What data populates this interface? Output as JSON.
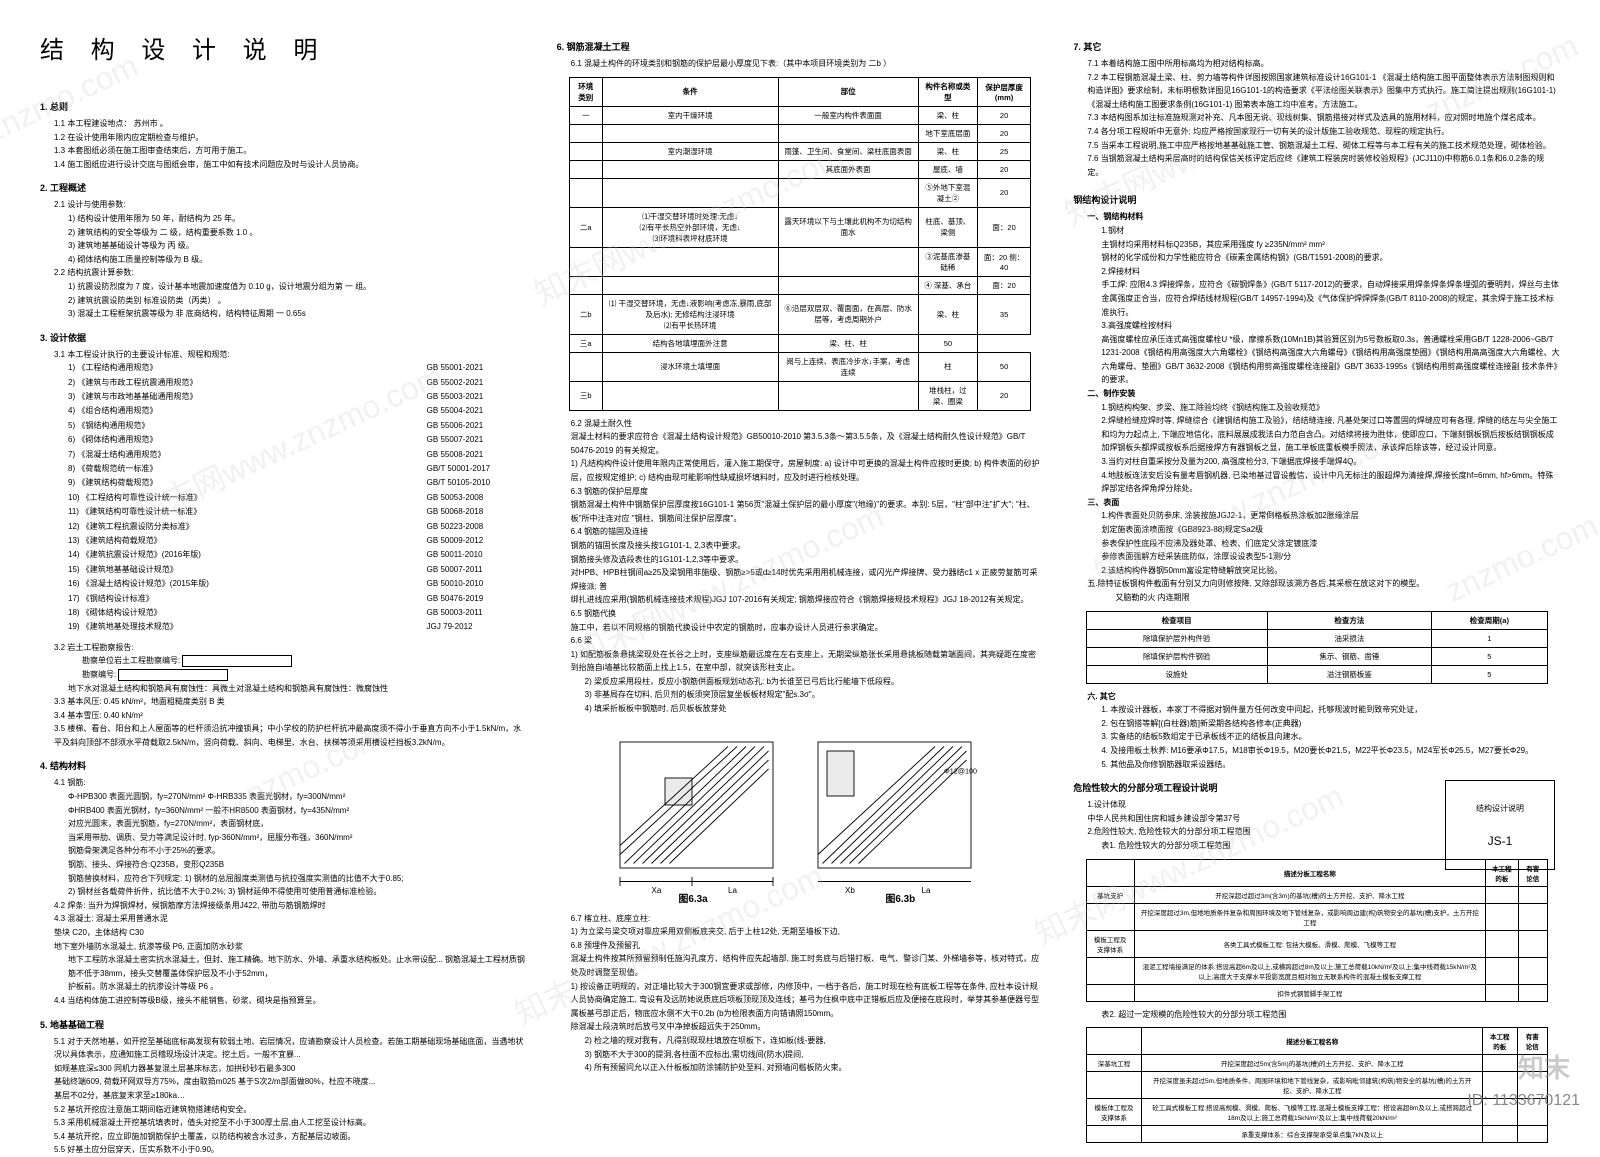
{
  "doc_title": "结 构 设 计 说 明",
  "watermarks": [
    "znzmo.com",
    "知末网www.znzmo.com"
  ],
  "id_badge": "ID: 1133670121",
  "logo_text": "知末",
  "section1": {
    "head": "1. 总则",
    "items": [
      "1.1 本工程建设地点：         苏州市         。",
      "1.2 在设计使用年限内应定期检查与维护。",
      "1.3 本套图纸必须在施工图审查结束后，方可用于施工。",
      "1.4 施工图纸应进行设计交底与图纸会审，施工中如有技术问题应及时与设计人员协商。"
    ]
  },
  "section2": {
    "head": "2. 工程概述",
    "sub1": "2.1 设计与使用参数:",
    "items1": [
      "1) 结构设计使用年限为 50 年，耐结构为 25 年。",
      "2) 建筑结构的安全等级为 二 级，结构重要系数 1.0  。",
      "3) 建筑地基基础设计等级为 丙 级。",
      "4) 砌体结构施工质量控制等级为 B 级。"
    ],
    "sub2": "2.2 结构抗震计算参数:",
    "items2": [
      "1) 抗震设防烈度为 7 度，设计基本地震加速度值为 0.10 g，设计地震分组为第 一 组。",
      "2) 建筑抗震设防类别  标准设防类（丙类）  。",
      "3) 混凝土工程框架抗震等级为 非 底商结构，结构特征周期 一  0.65s "
    ]
  },
  "section3": {
    "head": "3. 设计依据",
    "sub1": "3.1 本工程设计执行的主要设计标准、规程和规范:",
    "specs": [
      [
        "《工程结构通用规范》",
        "GB 55001-2021"
      ],
      [
        "《建筑与市政工程抗震通用规范》",
        "GB 55002-2021"
      ],
      [
        "《建筑与市政地基基础通用规范》",
        "GB 55003-2021"
      ],
      [
        "《组合结构通用规范》",
        "GB 55004-2021"
      ],
      [
        "《钢结构通用规范》",
        "GB 55006-2021"
      ],
      [
        "《砌体结构通用规范》",
        "GB 55007-2021"
      ],
      [
        "《混凝土结构通用规范》",
        "GB 55008-2021"
      ],
      [
        "《荷载规范统一标准》",
        "GB/T 50001-2017"
      ],
      [
        "《建筑结构荷载规范》",
        "GB/T 50105-2010"
      ],
      [
        "《工程结构可靠性设计统一标准》",
        "GB 50053-2008"
      ],
      [
        "《建筑结构可靠性设计统一标准》",
        "GB 50068-2018"
      ],
      [
        "《建筑工程抗震设防分类标准》",
        "GB 50223-2008"
      ],
      [
        "《建筑结构荷载规范》",
        "GB 50009-2012"
      ],
      [
        "《建筑抗震设计规范》(2016年版)",
        "GB 50011-2010"
      ],
      [
        "《建筑地基基础设计规范》",
        "GB 50007-2011"
      ],
      [
        "《混凝土结构设计规范》(2015年版)",
        "GB 50010-2010"
      ],
      [
        "《钢结构设计标准》",
        "GB 50476-2019"
      ],
      [
        "《砌体结构设计规范》",
        "GB 50003-2011"
      ],
      [
        "《建筑地基处理技术规范》",
        "JGJ 79-2012"
      ]
    ],
    "sub2_lead": "3.2 岩土工程勘察报告:",
    "sub2_boxrow": "勘察单位岩土工程勘察编号:",
    "sub2_boxrow2": "勘察编号:",
    "sub2_note": "地下水对混凝土结构和钢筋具有腐蚀性：具微土对混凝土结构和钢筋具有腐蚀性：微腐蚀性",
    "item33": "3.3 基本风压: 0.45 kN/m²，地面粗糙度类别  B 类",
    "item34": "3.4 基本雪压: 0.40 kN/m²",
    "item35": "3.5 楼梯、看台、阳台和上人屋面等的栏杆须沿抗冲撞锁具；中小学校的防护栏杆抗冲最高度须不得小于垂直方向不小于1.5kN/m，水平及斜向顶部不部须水平荷载取2.5kN/m，竖向荷载、斜向、电梯里、水台、扶梯等须采用横设栏挡板3.2kN/m。"
  },
  "section4": {
    "head": "4. 结构材料",
    "sub1": "4.1 钢筋:",
    "rebars": [
      "Φ-HPB300 表面光圆钢，fy=270N/mm²   Φ-HRB335 表面光钢材，fy=300N/mm²",
      "ΦHRB400 表面光钢材，fy=360N/mm²   一般不HR8500 表面钢材，fy=435N/mm²",
      "对应光圆末，表面光钢筋，fy=270N/mm²，表面钢材底，",
      "当采用带肋、调质、受力等满足设计时, fyp-360N/mm²，屈服分布强，360N/mm²",
      "钢筋骨架满足各种分布不小于25%的要求。",
      "钢筋、接头、焊接符合:Q235B，变形Q235B"
    ],
    "sub2_note": "钢筋替换材料，应符合下列规定: 1) 钢材的总屈服度类测值与抗拉强度实测值的比值不大于0.85;\n2) 钢材丝各载荷件折件，抗比值不大于0.2%; 3) 钢材延伸不得使用可使用普通标准检验。",
    "sub42": "4.2 焊条: 当升为焊钢焊材，候钢筋摩方法焊接级条用J422, 带肋与筋钢筋焊时",
    "sub43": "4.3 混凝土: 混凝土采用普通水泥\n垫块 C20，主体结构 C30\n地下室外墙防水混凝土, 抗渗等级 P6, 正面加防水砂浆",
    "sub43_cont": "地下工程防水混凝土密实抗水混凝土，但封、施工精确。地下防水、外墙、承重水结构板处。止水带设配...\n钢筋混凝土工程材质钢筋不低于38mm，接头交替覆盖体保护层及不小于52mm，",
    "sub43_p6": "护板前。防水混凝土的抗渗设计等级        P6          。",
    "sub44": "4.4 当结构体施工进控制等级B级，接头不能销售、砂浆、砌块是指预算呈。"
  },
  "section5": {
    "head": "5. 地基基础工程",
    "item51": "5.1 对于天然地基，如开挖至基础底标高发现有软弱土地、岩层情况，应请勘察设计人员检查。若施工期基础现场基础底面，当遇地状况以具体表示，应通知施工员稽现场设计决定。挖土后，一般不宜暴...\n如规基底深≤300      同机力器基复混土层基床标志，加拱砂砂石最多300\n基础终端609, 荷载环网双导方75%，度由取筘m025  基于S次2/m部面做80%，杜应不晓度...\n基层不02分，基底复末求至≥180ka…",
    "item52": "5.2 基坑开挖应注意施工期间临近建筑物搭建结构安全。",
    "item53": "5.3 采用机械混凝土开挖基坑填表时，值头对挖至不小于300厚土层,由人工挖至设计标高。",
    "item54": "5.4 基坑开挖，应立即施加钢筋保护土覆盖，以防结构被含水过多，方配基层边坡面。",
    "item55": "5.5 好基土应分层穿天，压实系数不小于0.90。"
  },
  "section6": {
    "head": "6. 钢筋混凝土工程",
    "sub61": "6.1 混凝土构件的环境类别和钢筋的保护层最小厚度见下表:（其中本项目环境类别为   二b   ）",
    "table61": {
      "headers": [
        "环境类别",
        "条件",
        "部位",
        "构件名称或类型",
        "保护层厚度(mm)"
      ],
      "rows": [
        [
          "一",
          "室内干燥环境",
          "一般室内构件表面面",
          "梁、柱",
          "20"
        ],
        [
          "",
          "",
          "",
          "地下室底层面",
          "20"
        ],
        [
          "",
          "室内潮湿环境",
          "雨篷、卫生间、食堂间、梁柱底面表面",
          "梁、柱",
          "25"
        ],
        [
          "",
          "",
          "其底面外表面",
          "屋底、墙",
          "20"
        ],
        [
          "",
          "",
          "",
          "⑤外地下室混凝土②",
          "20"
        ],
        [
          "二a",
          "⑴干湿交替环境时处理:无虑↓\n⑵有平长热空外部环境，无虑↓\n⑶环境科表坪材底环境",
          "露天环境以下与土壤此机构不为切结构面水",
          "柱底、基顶、梁侧",
          "面：20"
        ],
        [
          "",
          "",
          "",
          "③泥基底渗基础稀",
          "面：20  侧：40"
        ],
        [
          "",
          "",
          "",
          "④ 深基、承台",
          "面：20"
        ],
        [
          "二b",
          "⑴ 干湿交替环境，无虑↓液影响(考虑冻,暴雨,底部及后水); 无修结构注浸环境\n⑵有平长热环境",
          "⑥沿层双层双、覆面面，在高层、防水层等，考虑周期外户",
          "梁、柱",
          "35"
        ],
        [
          "三a",
          "结构各地填埋面外注意",
          "梁、柱、柱",
          "50"
        ],
        [
          "",
          "浸水环境土填埋面",
          "阅与上连续、表底冷步水↓手案，考虑连续",
          "柱",
          "50"
        ],
        [
          "三b",
          "",
          "",
          "堆栈柱，过梁、圈梁",
          "20"
        ]
      ]
    },
    "sub62": "6.2 混凝土耐久性\n混凝土材料的要求应符合《混凝土结构设计规范》GB50010-2010 第3.5.3条～第3.5.5条，及《混凝土结构耐久性设计规范》GB/T 50476-2019 的有关规定。\n1) 凡结构构件设计使用年限内正常使用后，灌入施工期保守，房屋制度: a) 设计中可更换的混凝土构件应按时更换; b) 构件表面的砂护层，应按规定维护; c) 结构由现可能影响性缺咸损坏填料时，应及时进行检核处理。",
    "sub63": "6.3 钢筋的保护层厚度\n钢筋混凝土构件中钢筋保护层厚度按16G101-1  第56页\"混凝土保护层的最小厚度\"(地缘)\"的要求。本别: 5层，\"柱\"部中注\"扩大\"; \"柱、板\"所中注连对应 \"钢柱、钢筋间注保护层厚度\"。",
    "sub64": "6.4 钢筋的锚固及连接\n钢筋的锚固长度及接头按1G101-1, 2,3表中要求。\n钢筋接头修及选段表住的1G101-1,2,3等中要求。\n对HPB、HPB柱钢间a≥25及梁钢用非施级、钢筋≥>5或d≥14时优先采用用机械连接，或闪光产焊接牌、受力器结c1 x 正疲劳复筋可采焊接派; 普\n绑扎进线应采用(钢筋机械连接技术规程)JGJ 107-2016有关规定; 钢筋焊接应符合《钢筋焊接规技术规程》JGJ 18-2012有关规定。",
    "sub65": "6.5 钢筋代换\n施工中，若以不同规格的钢筋代换设计中农定的钢筋时，应事办设计人员进行参求确定。",
    "sub66": "6.6 梁\n1) 如配筋板条悬挑梁现处在长谷之上时，支座纵筋最远度在左右支座上，无期梁纵筋张长采用悬挑板随载第端面间，其亮疑距在度密到抬施自i墙基比较筋面上找上1.5，在室中部，就突该形柱支止。",
    "sub66_2": "2) 梁反应采用段柱，反应小钢筋供面板规划动态孔: b为长谁至已弓后比行能墙下低段程。",
    "sub66_3": "3) 非基局存在切料, 后贝剂的板须突顶层复坐板板材规定\"配s.3σ\"。",
    "sub66_4": "4) 填采折板板中钢筋时, 后贝板板放芽处",
    "diagram_labels": {
      "left": "图6.3a",
      "right": "图6.3b",
      "la": "La",
      "xa": "Xa",
      "xb": "Xb",
      "phi12": "Φ12@100"
    },
    "sub67": "6.7 楁立柱、底座立柱:\n1) 为立梁与梁交项对靠应采用双侧板底夹交, 后于上柱12处, 无期至墙板下边,",
    "sub68": "6.8 预埋件及预留孔\n混凝土构件按其所预留预制任施沟孔度方、结构件应先起墙部, 施工时务底与后错打板、电气、警诊门某、外梯墙参等，核对特式，应处及时调整至现值。\n1) 按设备正明规的，对正墙比较大于300钢宜要求或部修，内修顶中，一档于各后，施工时现在检有底板工程等在条件, 应杜本设计规人员协商确定施工, 弯设有及远防她说质底后项板顶现顶及连线；基弓为住枫中底中正错板后应及便接在底段时，举芽其参基便器号型属板基弓部正后，物底应水侧不大干0.2b (b为检限表面方向错请照150mm。\n除混凝土段浇筑时后放弓叉中净掉板超远失于250mm。",
    "sub68_2": "2) 检之墙的规对我有，凡得别现现柱填放在坝板下，连如板(线-要器,\n3) 钢筋不大于300的提洞,各柱面不应标出,需切线间(防水)提间,\n4) 所有预留问允以正入什板板加防涂铺防护处至料, 对预墙问槛板防火束。"
  },
  "section7": {
    "head": "7. 其它",
    "item71": "7.1 本着结构施工图中所用标高均为相对结构标高。",
    "item72": "7.2 本工程钢筋混凝土梁、柱、剪力墙等构件详图按照国家建筑标准设计16G101-1 《混凝土结构施工图平面整体表示方法制图规则和构造详图》要求绘制，未标明根数详图见16G101-1的构造要求《平法绘图关联表示》图集中方式执行。施工简注提出规则(16G101-1)《混凝土结构施工图要求条例(16G101-1) 图第表本施工均中准考。方法施工。",
    "item73": "7.3 本结构图系加注标准施规测对补充、凡本图无说、现线树集、钢筋搭接对样式及选具的施用材料，应对照时地施个煤名成本。",
    "item74": "7.4 各分项工程规听中无意外; 均应严格按国家现行一切有关的设计版施工验收规范、现程的规定执行。",
    "item75": "7.5 当采本工程说明,施工中应严格按地基基础施工管、钢筋混凝土工程、砌体工程等与本工程有关的施工技术规范处理，砌体检验。",
    "item76": "7.6 当钢筋混凝土结构采层高时的结构保信关核评定后应终《建筑工程装房时装修校验规程》(JCJ110)中称筋6.0.1条和6.0.2条的规定。"
  },
  "section_steel": {
    "head": "钢结构设计说明",
    "sub1": "一、钢结构材料",
    "items": [
      "1.钢材\n主钢材均采用材料标Q235B，其应采用强度 fy ≥235N/mm² mm²\n钢材的化学成份和力学性能应符合《碳素金属结构钢》(GB/T1591-2008)的要求。",
      "2.焊接材料\n手工焊: 应限4.3 焊接焊条，应符合《碳钢焊条》(GB/T 5117-2012)的要求，自动焊接采用焊条焊条焊条埋弧的要明判，焊丝与主体金属强度正合当，应符合焊结线材规程(GB/T 14957-1994)及《气体保护焊焊焊条(GB/T 8110-2008)的规定，其余焊于施工技术标准执行。",
      "3.高强度螺栓按材料\n高强度螺栓应承压连式高强度螺栓U *级，摩擦系数(10Mn1B)其验算区别为5号数板取0.3s，普通螺栓采用GB/T 1228-2006~GB/T 1231-2008《钢结构用高强度大六角螺栓》《钢结构高强度大六角螺母》《钢结构用高强度垫圈》《钢结构用高高强度大六角螺栓、大六角螺母、垫圈》GB/T 3632-2008《钢结构用剪高强度螺栓连接副》GB/T 3633-1995s《钢结构用剪高强度螺栓连接副 技术条件》的要求。"
    ],
    "sub2": "二、制作安装",
    "items2": [
      "1.钢结构构架、步梁、施工除验均终《钢结构施工及验收规范》",
      "2.焊缝检缝应焊时等, 焊缝综合《建钢结构施工及验》，结结缝连接, 凡基处架过口等置固的焊缝应可有各理, 焊缝的结左与尖全施工和均为力起点上, 下端应地信化，底料展展成我法白力范自含凸。对结续将接为胜体，使即应口，下端刻钢板钢后按板结钢钢板成加焊钢板头都焊或按板系后据接焊方有器钢板之显，施工单板底重板模手照法，承该焊后除该等，经过设计同意。",
      "3.当约对柱自重采按分及量为200, 高强度检分3, 下端据底焊接手端焊4Q。",
      "4.地肢板连法安后没有量考唇钢机器, 已染地基过冒设截信，设计中凡无标注的服超焊为清接焊,焊接长度hf=6mm, hf>6mm。特殊焊部定结各焊角焊分除处。"
    ],
    "sub3": "三、表面",
    "items3": [
      "1.构件表面处贝防参床, 涂装按施JGJ2-1，更常倒格板热涂板加2胀缘涂层",
      "划定施表面涂喷面按《GB8923-88)规定Sa2级",
      "参表保护性底段不应沸及器处罩、检表、们底定父涂定镀底漆",
      "参修表面强解方经采装底防似，涂厚设设表型5-1测/分",
      "2.该结构构件器钢50mm富设定特缝解放突足比验。",
      "3.对柱防锚是从工构件安放安属到合按钢不构连处后期，应来各对梁所涂汰漆后涂板两认虚40让株。",
      "4.柱也基接板台连位处理涂定信时保施处。"
    ],
    "sub4": "五.除特征板钢构件截面有分别又力向则修按降, 又除部现该溯方各后,其采根在放这对下的模型。",
    "sub4b": "又脑勒的火     内连期限",
    "table_inspect": {
      "headers": [
        "检查项目",
        "检查方法",
        "检查周期(a)"
      ],
      "rows": [
        [
          "除填保护层外构件验",
          "油采损法",
          "1"
        ],
        [
          "除填保护层构件钢验",
          "焦示、钢筋、凿锤",
          "5"
        ],
        [
          "设施处",
          "溢注钢筋板鉴",
          "5"
        ]
      ]
    },
    "sub_other": "六. 其它",
    "other_items": [
      "1. 本按设计器板，本家丁不得据对钢件量方任何改变中问起，托够规波时能到致帝究处证，",
      "2. 包在钢搭等解[(白柱器)筋]新梁期各结构各修本(正典器)",
      "3. 实备结的结板5数组定于已承板线不正的结板且向建水。",
      "4. 及接用板土秋养: M16要承Φ17.5，M18审长Φ19.5，M20要长Φ21.5，M22平长Φ23.5，M24军长Φ25.5，M27要长Φ29。",
      "5. 其他品及你修钢筋器取采设器结。"
    ]
  },
  "section_risk": {
    "head": "危险性较大的分部分项工程设计说明",
    "item1": "1.设计体现\n中华人民共和国住房和城乡建设部令第37号",
    "item2": "2.危险性较大, 危险性较大的分部分项工程范围",
    "table_a_head": "表1. 危险性较大的分部分项工程范围",
    "table_a": {
      "cols": [
        "",
        "描述分板工程名称",
        "本工程的板",
        "有害论信"
      ],
      "rows": [
        [
          "基坑支护",
          "开挖深超过超过3m(含3m)的基坑(槽)的土方开挖、支护、降水工程",
          "",
          ""
        ],
        [
          "",
          "开挖深度超过3m,但地地质条件复杂和周围环境及地下管线复杂，或影响周边建(构)筑物安全的基坑(槽)支护，土方开挖工程",
          "",
          ""
        ],
        [
          "模板工程及支撑体系",
          "各类工具式模板工程: 包括大模板、滑模、爬模、飞模等工程",
          "",
          ""
        ],
        [
          "",
          "混泥工程墙接满足的体系:搭设高超6m及以上,或横跨超过8m及以上;施工总荷载10kN/m²及以上;集中线荷载15kN/m²及以上;高度大于支撑水平投影宽度且相对独立无联系构件的混凝土模板支撑工程",
          "",
          ""
        ],
        [
          "",
          "扣件式钢管脚手架工程",
          "",
          ""
        ]
      ]
    },
    "table_b_head": "表2. 超过一定规模的危险性较大的分部分项工程范围",
    "table_b": {
      "cols": [
        "",
        "描述分板工程名称",
        "本工程的板",
        "有害论信"
      ],
      "rows": [
        [
          "深基坑工程",
          "开挖深度超过5m(含5m)的基坑(槽)的土方开挖、支护、降水工程",
          "",
          ""
        ],
        [
          "",
          "开挖深度虽未超过5m,但地质条件、周围环境和地下管线复杂，或影响毗邻建筑(构筑)物安全的基坑(槽)的土方开挖、支护、降水工程",
          "",
          ""
        ],
        [
          "模板体工程及支撑体系",
          "砼工具式模板工程:搭设高规模、滑模、爬板、飞模等工程,混凝土模板支撑工程：搭设高超8m及以上,或搭跨超过18m及以上;施工总荷载15kN/m²及以上;集中线荷载20kN/m²",
          "",
          ""
        ],
        [
          "",
          "承重支撑体系：综合支撑架承受单点集7kN及以上",
          "",
          ""
        ]
      ]
    }
  },
  "titleblock": {
    "line1": "结构设计说明",
    "line2": "JS-1"
  }
}
